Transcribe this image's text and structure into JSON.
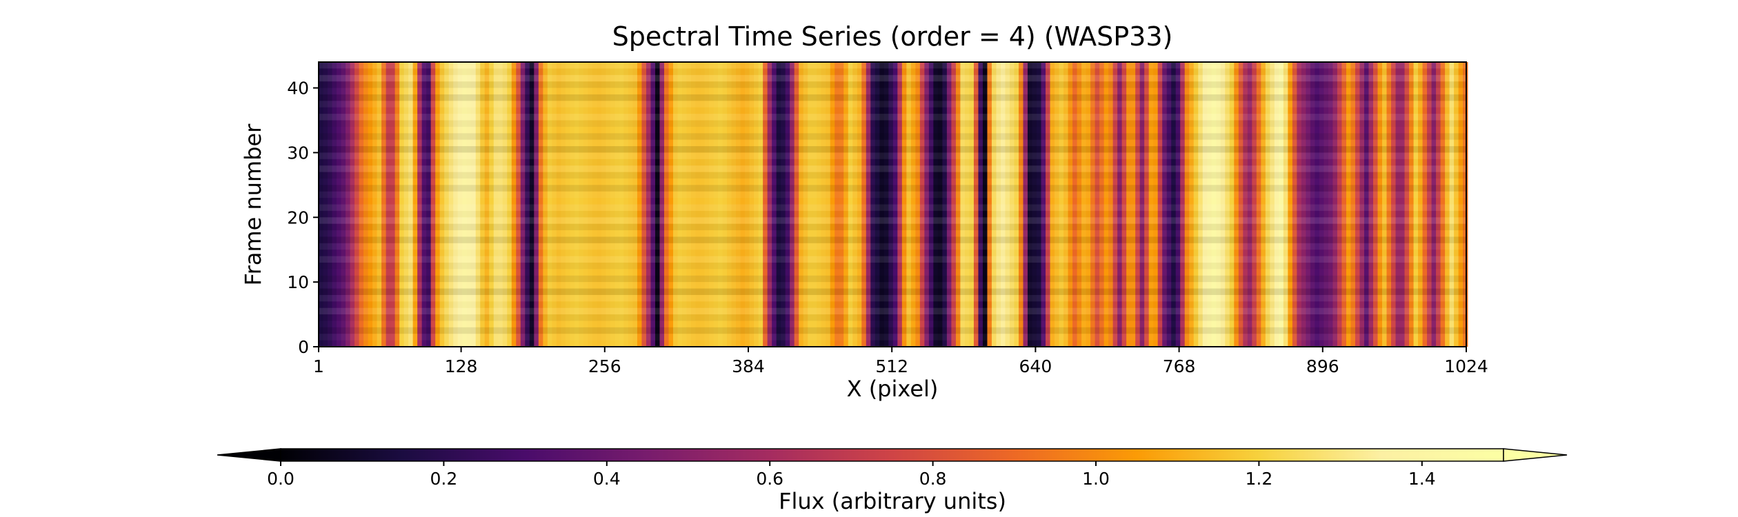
{
  "chart_data": {
    "type": "heatmap",
    "title": "Spectral Time Series (order = 4) (WASP33)",
    "xlabel": "X (pixel)",
    "ylabel": "Frame number",
    "xlim": [
      1,
      1024
    ],
    "ylim": [
      0,
      44
    ],
    "x_ticks": [
      1,
      128,
      256,
      384,
      512,
      640,
      768,
      896,
      1024
    ],
    "y_ticks": [
      0,
      10,
      20,
      30,
      40
    ],
    "grid": false,
    "colormap": "inferno",
    "colorbar": {
      "label": "Flux (arbitrary units)",
      "range": [
        0.0,
        1.5
      ],
      "extend": "both",
      "orientation": "horizontal",
      "ticks": [
        0.0,
        0.2,
        0.4,
        0.6,
        0.8,
        1.0,
        1.2,
        1.4
      ]
    },
    "frames": 44,
    "column_profile": {
      "x": [
        1,
        10,
        25,
        40,
        55,
        65,
        75,
        85,
        92,
        98,
        105,
        112,
        120,
        130,
        140,
        150,
        160,
        170,
        178,
        185,
        192,
        198,
        205,
        215,
        230,
        250,
        270,
        285,
        295,
        303,
        310,
        320,
        340,
        360,
        380,
        395,
        405,
        412,
        420,
        430,
        440,
        455,
        465,
        475,
        485,
        495,
        505,
        515,
        525,
        535,
        545,
        552,
        558,
        565,
        575,
        585,
        590,
        595,
        600,
        610,
        625,
        635,
        645,
        655,
        665,
        675,
        685,
        695,
        705,
        715,
        725,
        735,
        745,
        755,
        765,
        775,
        790,
        800,
        815,
        830,
        845,
        860,
        875,
        890,
        905,
        920,
        935,
        950,
        965,
        980,
        995,
        1010,
        1024
      ],
      "flux": [
        0.15,
        0.2,
        0.4,
        0.95,
        1.15,
        0.6,
        1.2,
        1.3,
        0.5,
        0.15,
        1.0,
        1.2,
        1.3,
        1.4,
        1.35,
        1.1,
        1.3,
        1.25,
        0.9,
        0.3,
        0.05,
        0.9,
        1.2,
        1.15,
        1.2,
        1.15,
        1.2,
        1.15,
        0.6,
        0.05,
        0.9,
        1.2,
        1.15,
        1.2,
        1.1,
        1.2,
        0.4,
        0.1,
        0.3,
        1.1,
        1.2,
        1.15,
        0.9,
        1.2,
        1.1,
        0.2,
        0.05,
        0.3,
        1.2,
        1.0,
        0.35,
        0.05,
        0.1,
        0.6,
        1.25,
        1.2,
        0.3,
        0.05,
        1.2,
        1.35,
        1.2,
        0.1,
        0.15,
        1.1,
        1.2,
        0.9,
        1.15,
        0.8,
        1.1,
        0.5,
        1.15,
        0.5,
        1.2,
        0.4,
        0.1,
        1.0,
        1.35,
        1.45,
        1.2,
        0.5,
        1.2,
        1.45,
        0.6,
        0.3,
        0.45,
        1.1,
        0.35,
        1.2,
        0.45,
        1.25,
        0.5,
        1.3,
        0.9
      ]
    }
  }
}
